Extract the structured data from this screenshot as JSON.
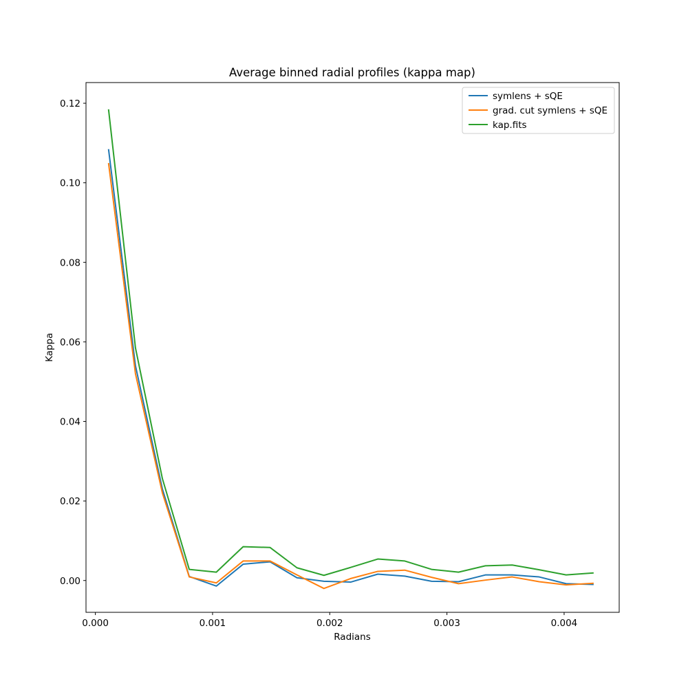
{
  "chart_data": {
    "type": "line",
    "title": "Average binned radial profiles (kappa map)",
    "xlabel": "Radians",
    "ylabel": "Kappa",
    "xlim": [
      -8e-05,
      0.00447
    ],
    "ylim": [
      -0.008,
      0.1252
    ],
    "xticks": [
      {
        "value": 0.0,
        "label": "0.000"
      },
      {
        "value": 0.001,
        "label": "0.001"
      },
      {
        "value": 0.002,
        "label": "0.002"
      },
      {
        "value": 0.003,
        "label": "0.003"
      },
      {
        "value": 0.004,
        "label": "0.004"
      }
    ],
    "yticks": [
      {
        "value": 0.0,
        "label": "0.00"
      },
      {
        "value": 0.02,
        "label": "0.02"
      },
      {
        "value": 0.04,
        "label": "0.04"
      },
      {
        "value": 0.06,
        "label": "0.06"
      },
      {
        "value": 0.08,
        "label": "0.08"
      },
      {
        "value": 0.1,
        "label": "0.10"
      },
      {
        "value": 0.12,
        "label": "0.12"
      }
    ],
    "grid": false,
    "legend_position": "top-right",
    "x": [
      0.000113,
      0.000342,
      0.000572,
      0.000801,
      0.001032,
      0.001261,
      0.001491,
      0.00172,
      0.00195,
      0.002179,
      0.00241,
      0.00264,
      0.002869,
      0.003099,
      0.003328,
      0.003557,
      0.003787,
      0.004017,
      0.004246
    ],
    "series": [
      {
        "name": "symlens + sQE",
        "color": "#1f77b4",
        "values": [
          0.1083,
          0.054,
          0.023,
          0.001,
          -0.0014,
          0.0041,
          0.0047,
          0.0007,
          -0.0002,
          -0.0004,
          0.0016,
          0.0011,
          -0.0002,
          -0.0003,
          0.0014,
          0.0014,
          0.0009,
          -0.0008,
          -0.001
        ]
      },
      {
        "name": "grad. cut symlens + sQE",
        "color": "#ff7f0e",
        "values": [
          0.1048,
          0.052,
          0.022,
          0.0009,
          -0.0006,
          0.0049,
          0.0049,
          0.0014,
          -0.002,
          0.0005,
          0.0023,
          0.0026,
          0.0008,
          -0.0008,
          0.0001,
          0.0009,
          -0.0003,
          -0.0011,
          -0.0007
        ]
      },
      {
        "name": "kap.fits",
        "color": "#2ca02c",
        "values": [
          0.1183,
          0.0585,
          0.0256,
          0.0028,
          0.0021,
          0.0085,
          0.0083,
          0.0032,
          0.0013,
          0.0033,
          0.0054,
          0.0049,
          0.0028,
          0.0021,
          0.0037,
          0.0039,
          0.0027,
          0.0014,
          0.0019
        ]
      }
    ]
  }
}
